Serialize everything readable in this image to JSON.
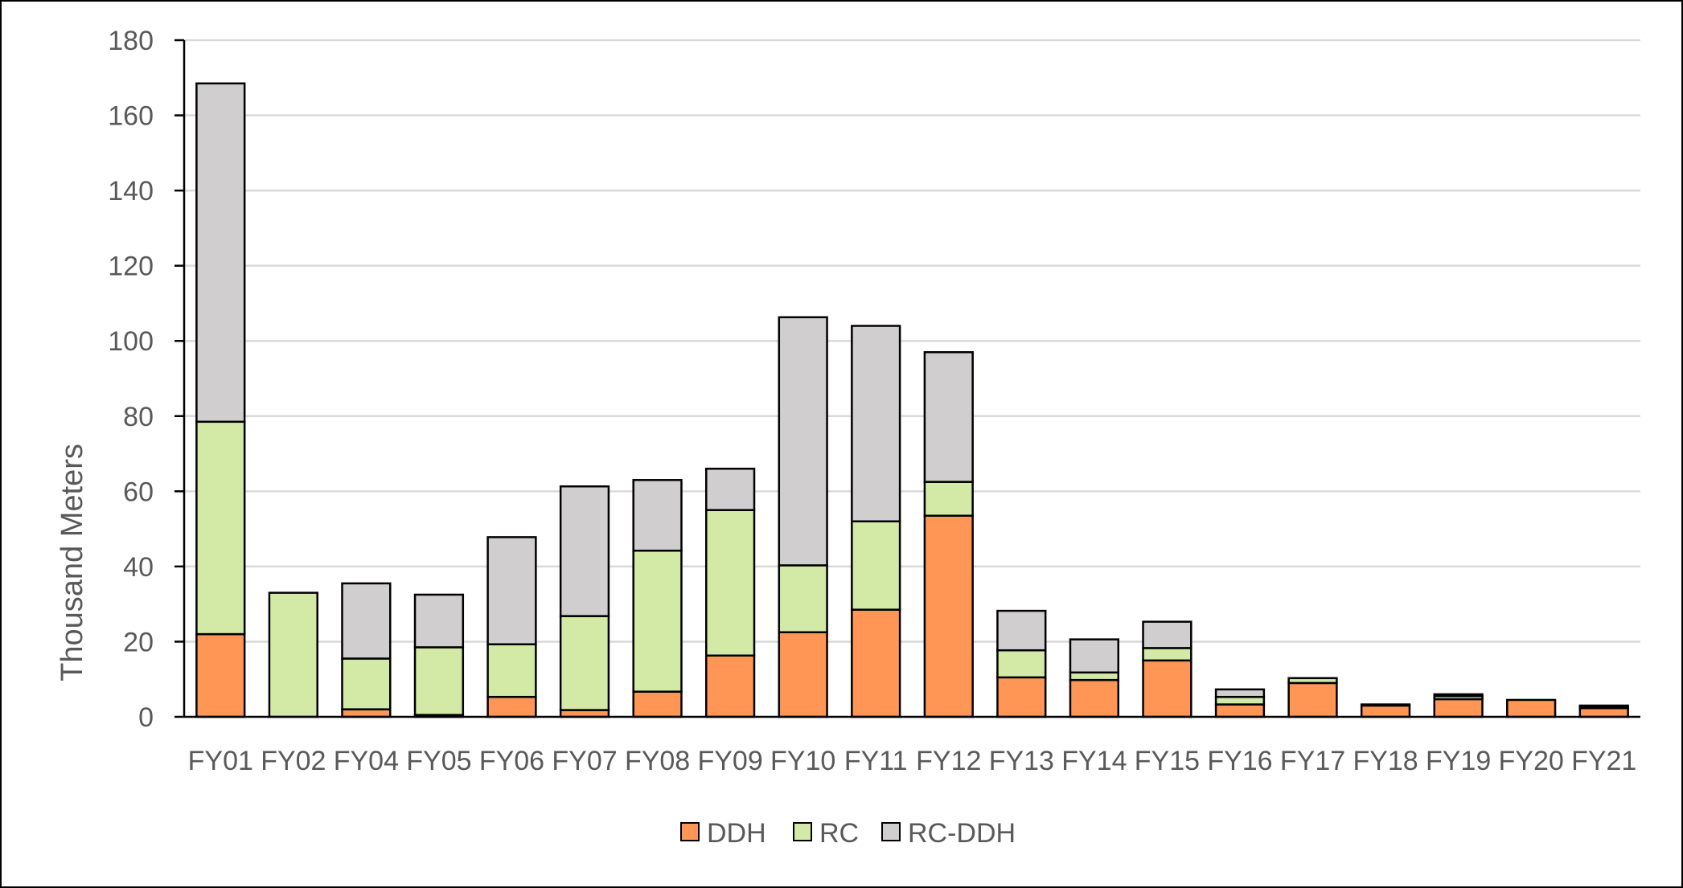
{
  "chart_data": {
    "type": "bar",
    "stacked": true,
    "categories": [
      "FY01",
      "FY02",
      "FY04",
      "FY05",
      "FY06",
      "FY07",
      "FY08",
      "FY09",
      "FY10",
      "FY11",
      "FY12",
      "FY13",
      "FY14",
      "FY15",
      "FY16",
      "FY17",
      "FY18",
      "FY19",
      "FY20",
      "FY21"
    ],
    "series": [
      {
        "name": "DDH",
        "color": "#FF9655",
        "values": [
          22,
          0,
          2,
          0.5,
          5.3,
          1.8,
          6.7,
          16.3,
          22.5,
          28.5,
          53.5,
          10.5,
          9.8,
          15,
          3.3,
          9,
          3,
          4.7,
          4.5,
          2.3
        ]
      },
      {
        "name": "RC",
        "color": "#D3E9A6",
        "values": [
          56.5,
          33,
          13.5,
          18,
          14,
          25,
          37.5,
          38.7,
          17.8,
          23.5,
          9,
          7.2,
          2,
          3.3,
          2,
          1.3,
          0.3,
          0.8,
          0,
          0.3
        ]
      },
      {
        "name": "RC-DDH",
        "color": "#D0CECF",
        "values": [
          90,
          0,
          20,
          14,
          28.5,
          34.5,
          18.8,
          11,
          66,
          52,
          34.5,
          10.5,
          8.8,
          7,
          2,
          0,
          0,
          0.5,
          0,
          0.4
        ]
      }
    ],
    "xlabel": "",
    "ylabel": "Thousand Meters",
    "ylim": [
      0,
      180
    ],
    "yticks": [
      "0",
      "20",
      "40",
      "60",
      "80",
      "100",
      "120",
      "140",
      "160",
      "180"
    ],
    "grid": true,
    "legend_position": "bottom-center"
  }
}
